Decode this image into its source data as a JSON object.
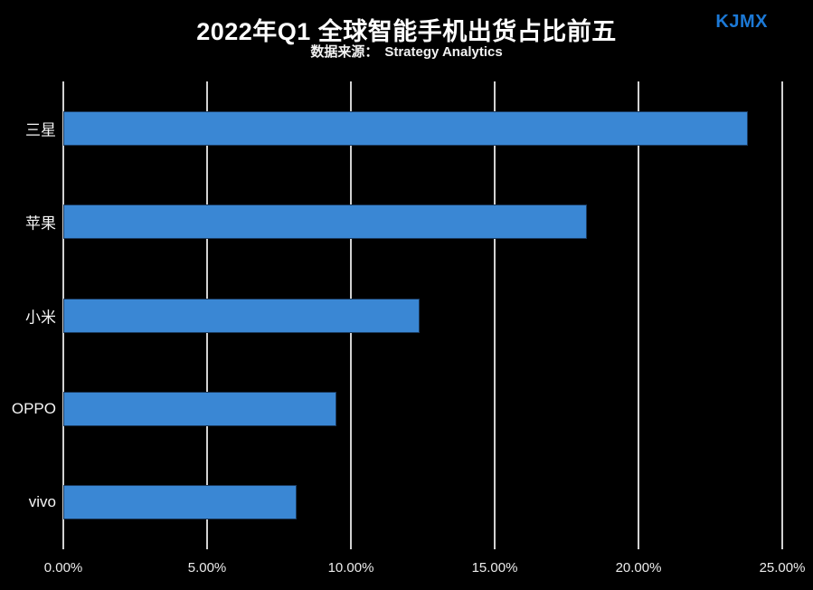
{
  "header": {
    "title": "2022年Q1 全球智能手机出货占比前五",
    "subtitle_label": "数据来源：",
    "subtitle_source": "Strategy Analytics",
    "watermark": "KJMX",
    "watermark_color": "#1c79d6"
  },
  "chart_data": {
    "type": "bar",
    "orientation": "horizontal",
    "title": "2022年Q1 全球智能手机出货占比前五",
    "subtitle": "数据来源：Strategy Analytics",
    "categories": [
      "三星",
      "苹果",
      "小米",
      "OPPO",
      "vivo"
    ],
    "values": [
      23.8,
      18.2,
      12.4,
      9.5,
      8.1
    ],
    "value_unit": "%",
    "xlabel": "",
    "ylabel": "",
    "xlim": [
      0,
      25
    ],
    "x_ticks": [
      "0.00%",
      "5.00%",
      "10.00%",
      "15.00%",
      "20.00%",
      "25.00%"
    ],
    "x_tick_values": [
      0,
      5,
      10,
      15,
      20,
      25
    ],
    "grid": "vertical",
    "legend": "none",
    "colors": {
      "background": "#000000",
      "bar": "#3a87d4",
      "bar_edge": "#1b3a5e",
      "gridline": "#d2d2d2",
      "text": "#ffffff"
    }
  }
}
